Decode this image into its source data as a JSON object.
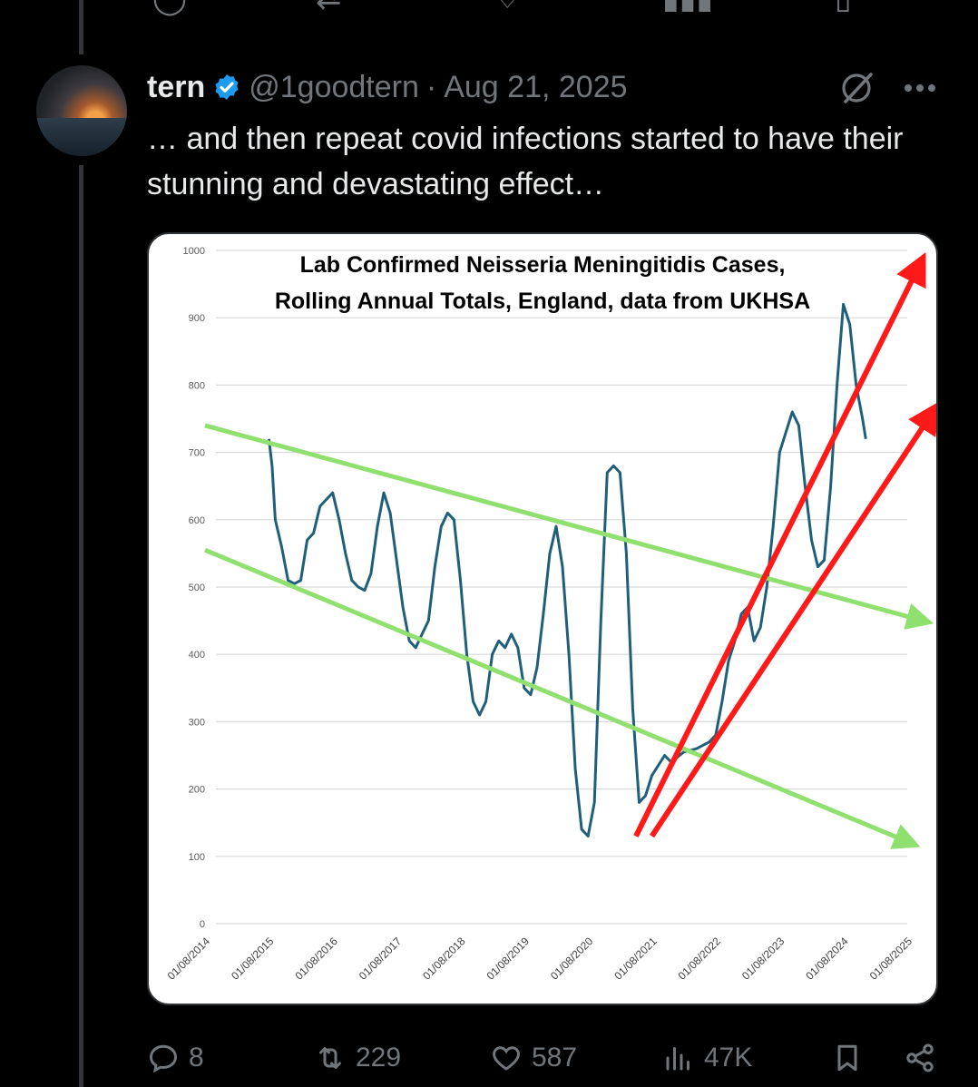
{
  "tweet": {
    "author_name": "tern",
    "handle": "@1goodtern",
    "separator": "·",
    "date": "Aug 21, 2025",
    "text": "… and then repeat covid infections started to have their stunning and devastating effect…",
    "icons": [
      "verified-badge-icon",
      "grok-icon",
      "more-icon"
    ]
  },
  "actions": {
    "replies": "8",
    "reposts": "229",
    "likes": "587",
    "views": "47K"
  },
  "colors": {
    "background": "#000000",
    "text": "#e7e9ea",
    "muted": "#71767b",
    "verified": "#1d9bf0",
    "series": "#1f5f7a",
    "green_trend": "#90e070",
    "red_trend": "#ff1a1a"
  },
  "chart_data": {
    "type": "line",
    "title_lines": [
      "Lab Confirmed Neisseria Meningitidis Cases,",
      "Rolling Annual Totals, England, data from UKHSA"
    ],
    "ylim": [
      0,
      1000
    ],
    "yticks": [
      0,
      100,
      200,
      300,
      400,
      500,
      600,
      700,
      800,
      900,
      1000
    ],
    "xlim": [
      2014.0,
      2025.0
    ],
    "xtick_labels": [
      "01/08/2014",
      "01/08/2015",
      "01/08/2016",
      "01/08/2017",
      "01/08/2018",
      "01/08/2019",
      "01/08/2020",
      "01/08/2021",
      "01/08/2022",
      "01/08/2023",
      "01/08/2024",
      "01/08/2025"
    ],
    "grid": true,
    "series": [
      {
        "points": [
          [
            2015.0,
            720
          ],
          [
            2015.05,
            680
          ],
          [
            2015.1,
            600
          ],
          [
            2015.2,
            560
          ],
          [
            2015.3,
            510
          ],
          [
            2015.4,
            505
          ],
          [
            2015.5,
            510
          ],
          [
            2015.6,
            570
          ],
          [
            2015.7,
            580
          ],
          [
            2015.8,
            620
          ],
          [
            2015.9,
            630
          ],
          [
            2016.0,
            640
          ],
          [
            2016.1,
            600
          ],
          [
            2016.2,
            550
          ],
          [
            2016.3,
            510
          ],
          [
            2016.4,
            500
          ],
          [
            2016.5,
            495
          ],
          [
            2016.6,
            520
          ],
          [
            2016.7,
            590
          ],
          [
            2016.8,
            640
          ],
          [
            2016.9,
            610
          ],
          [
            2017.0,
            540
          ],
          [
            2017.1,
            470
          ],
          [
            2017.2,
            420
          ],
          [
            2017.3,
            410
          ],
          [
            2017.4,
            430
          ],
          [
            2017.5,
            450
          ],
          [
            2017.6,
            530
          ],
          [
            2017.7,
            590
          ],
          [
            2017.8,
            610
          ],
          [
            2017.9,
            600
          ],
          [
            2018.0,
            510
          ],
          [
            2018.1,
            400
          ],
          [
            2018.2,
            330
          ],
          [
            2018.3,
            310
          ],
          [
            2018.4,
            330
          ],
          [
            2018.5,
            400
          ],
          [
            2018.6,
            420
          ],
          [
            2018.7,
            410
          ],
          [
            2018.8,
            430
          ],
          [
            2018.9,
            410
          ],
          [
            2019.0,
            350
          ],
          [
            2019.1,
            340
          ],
          [
            2019.2,
            380
          ],
          [
            2019.3,
            460
          ],
          [
            2019.4,
            550
          ],
          [
            2019.5,
            590
          ],
          [
            2019.6,
            530
          ],
          [
            2019.7,
            400
          ],
          [
            2019.8,
            230
          ],
          [
            2019.9,
            140
          ],
          [
            2020.0,
            130
          ],
          [
            2020.1,
            180
          ],
          [
            2020.2,
            450
          ],
          [
            2020.3,
            670
          ],
          [
            2020.4,
            680
          ],
          [
            2020.5,
            670
          ],
          [
            2020.6,
            550
          ],
          [
            2020.7,
            320
          ],
          [
            2020.8,
            180
          ],
          [
            2020.9,
            190
          ],
          [
            2021.0,
            220
          ],
          [
            2021.2,
            250
          ],
          [
            2021.3,
            240
          ],
          [
            2021.5,
            255
          ],
          [
            2021.7,
            260
          ],
          [
            2021.9,
            270
          ],
          [
            2022.0,
            280
          ],
          [
            2022.1,
            330
          ],
          [
            2022.2,
            390
          ],
          [
            2022.3,
            420
          ],
          [
            2022.4,
            460
          ],
          [
            2022.5,
            470
          ],
          [
            2022.6,
            420
          ],
          [
            2022.7,
            440
          ],
          [
            2022.8,
            500
          ],
          [
            2022.9,
            590
          ],
          [
            2023.0,
            700
          ],
          [
            2023.1,
            730
          ],
          [
            2023.2,
            760
          ],
          [
            2023.3,
            740
          ],
          [
            2023.4,
            650
          ],
          [
            2023.5,
            570
          ],
          [
            2023.6,
            530
          ],
          [
            2023.7,
            540
          ],
          [
            2023.8,
            650
          ],
          [
            2023.9,
            800
          ],
          [
            2024.0,
            920
          ],
          [
            2024.1,
            890
          ],
          [
            2024.2,
            800
          ],
          [
            2024.3,
            750
          ],
          [
            2024.35,
            720
          ]
        ]
      }
    ],
    "annotations": [
      {
        "type": "arrow",
        "color": "green",
        "from": [
          2014.0,
          740
        ],
        "to": [
          2025.25,
          450
        ]
      },
      {
        "type": "arrow",
        "color": "green",
        "from": [
          2014.0,
          555
        ],
        "to": [
          2025.05,
          120
        ]
      },
      {
        "type": "arrow",
        "color": "red",
        "from": [
          2020.75,
          130
        ],
        "to": [
          2025.2,
          980
        ]
      },
      {
        "type": "arrow",
        "color": "red",
        "from": [
          2021.0,
          130
        ],
        "to": [
          2025.4,
          760
        ]
      }
    ]
  }
}
